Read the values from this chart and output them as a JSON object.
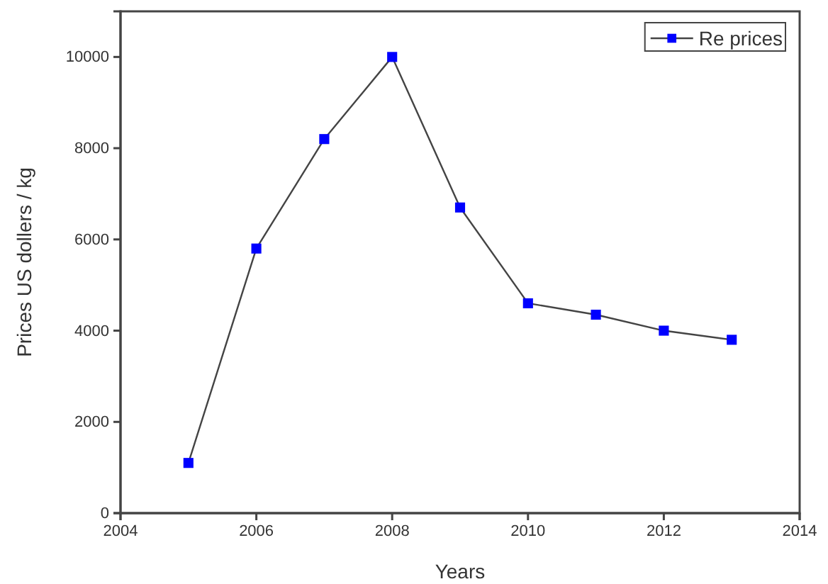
{
  "chart_data": {
    "type": "line",
    "xlabel": "Years",
    "ylabel": "Prices US dollers / kg",
    "x": [
      2005,
      2006,
      2007,
      2008,
      2009,
      2010,
      2011,
      2012,
      2013
    ],
    "series": [
      {
        "name": "Re prices",
        "color": "#0000ff",
        "values": [
          1100,
          5800,
          8200,
          10000,
          6700,
          4600,
          4350,
          4000,
          3800
        ]
      }
    ],
    "xlim": [
      2004,
      2014
    ],
    "xticks": [
      2004,
      2006,
      2008,
      2010,
      2012,
      2014
    ],
    "ylim": [
      0,
      11000
    ],
    "yticks": [
      0,
      2000,
      4000,
      6000,
      8000,
      10000
    ],
    "grid": false,
    "legend": "top right",
    "marker": "square",
    "line_style": "solid"
  }
}
